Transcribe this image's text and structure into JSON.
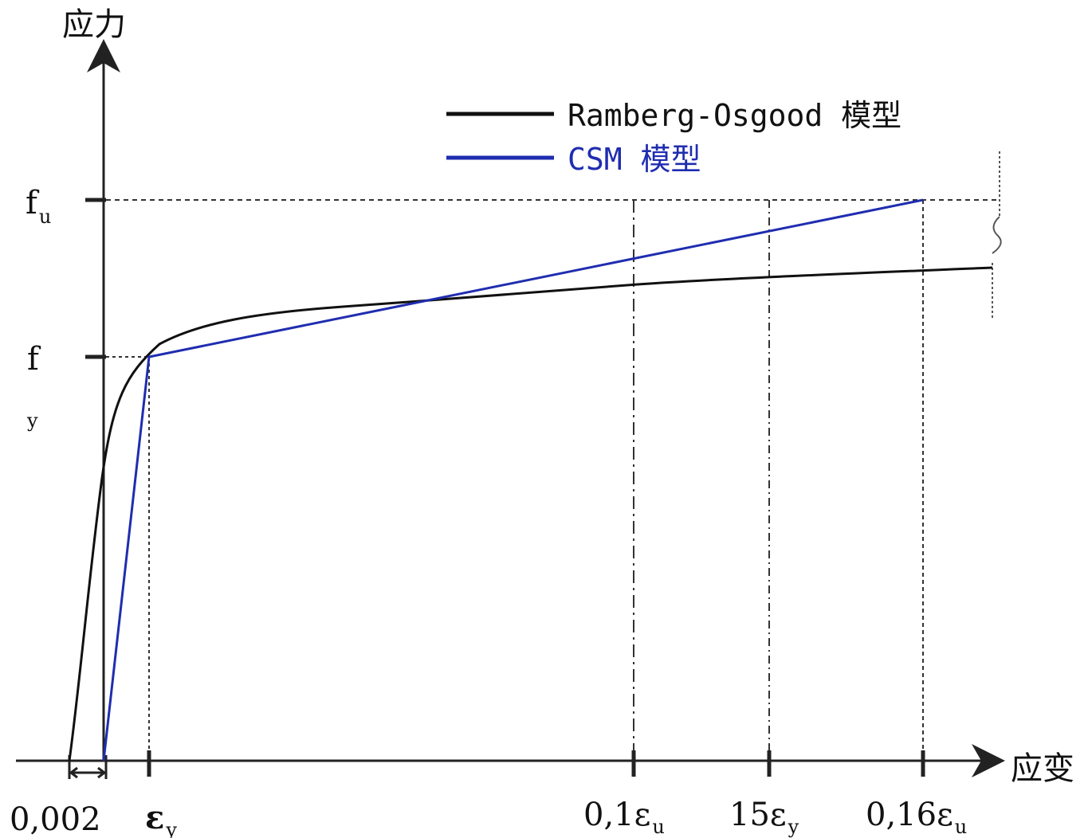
{
  "chart_data": {
    "type": "line",
    "title": "",
    "ylabel": "应力",
    "xlabel": "应变",
    "y_ticks": [
      {
        "key": "fu",
        "base": "f",
        "sub": "u"
      },
      {
        "key": "fy",
        "base": "f",
        "sub": "y"
      }
    ],
    "x_ticks": [
      {
        "key": "offset",
        "base": "0,002",
        "sub": ""
      },
      {
        "key": "ey",
        "base": "ε",
        "sub": "y"
      },
      {
        "key": "e01u",
        "base": "0,1ε",
        "sub": "u"
      },
      {
        "key": "e15y",
        "base": "15ε",
        "sub": "y"
      },
      {
        "key": "e016u",
        "base": "0,16ε",
        "sub": "u"
      }
    ],
    "legend_position": "top-right",
    "series": [
      {
        "name": "Ramberg-Osgood 模型",
        "color": "#111111"
      },
      {
        "name": "CSM 模型",
        "color": "#1f2db0"
      }
    ]
  }
}
